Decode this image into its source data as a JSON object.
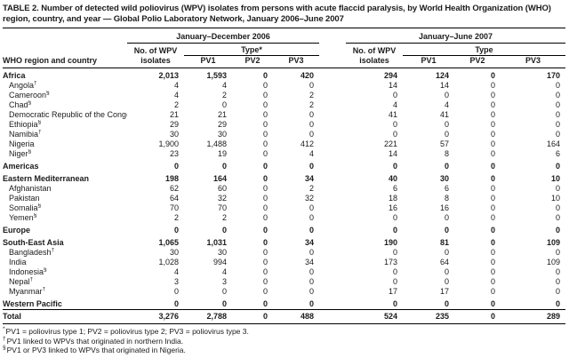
{
  "title": "TABLE 2. Number of detected wild poliovirus (WPV) isolates from persons with acute flaccid paralysis, by World Health Organization (WHO) region, country, and year — Global Polio Laboratory Network, January 2006–June 2007",
  "colors": {
    "background": "#ffffff",
    "text": "#1b1b1b",
    "rule": "#000000"
  },
  "table": {
    "row_header": "WHO region and country",
    "groups": [
      {
        "period": "January–December 2006",
        "isolates_label_line1": "No. of WPV",
        "isolates_label_line2": "isolates",
        "type_label": "Type*",
        "pv": [
          "PV1",
          "PV2",
          "PV3"
        ]
      },
      {
        "period": "January–June 2007",
        "isolates_label_line1": "No. of WPV",
        "isolates_label_line2": "isolates",
        "type_label": "Type",
        "pv": [
          "PV1",
          "PV2",
          "PV3"
        ]
      }
    ],
    "rows": [
      {
        "label": "Africa",
        "marker": "",
        "type": "region",
        "values": [
          "2,013",
          "1,593",
          "0",
          "420",
          "294",
          "124",
          "0",
          "170"
        ]
      },
      {
        "label": "Angola",
        "marker": "†",
        "type": "country",
        "values": [
          "4",
          "4",
          "0",
          "0",
          "14",
          "14",
          "0",
          "0"
        ]
      },
      {
        "label": "Cameroon",
        "marker": "§",
        "type": "country",
        "values": [
          "4",
          "2",
          "0",
          "2",
          "0",
          "0",
          "0",
          "0"
        ]
      },
      {
        "label": "Chad",
        "marker": "§",
        "type": "country",
        "values": [
          "2",
          "0",
          "0",
          "2",
          "4",
          "4",
          "0",
          "0"
        ]
      },
      {
        "label": "Democratic Republic of the Congo",
        "marker": "†",
        "type": "country",
        "values": [
          "21",
          "21",
          "0",
          "0",
          "41",
          "41",
          "0",
          "0"
        ]
      },
      {
        "label": "Ethiopia",
        "marker": "§",
        "type": "country",
        "values": [
          "29",
          "29",
          "0",
          "0",
          "0",
          "0",
          "0",
          "0"
        ]
      },
      {
        "label": "Namibia",
        "marker": "†",
        "type": "country",
        "values": [
          "30",
          "30",
          "0",
          "0",
          "0",
          "0",
          "0",
          "0"
        ]
      },
      {
        "label": "Nigeria",
        "marker": "",
        "type": "country",
        "values": [
          "1,900",
          "1,488",
          "0",
          "412",
          "221",
          "57",
          "0",
          "164"
        ]
      },
      {
        "label": "Niger",
        "marker": "§",
        "type": "country",
        "values": [
          "23",
          "19",
          "0",
          "4",
          "14",
          "8",
          "0",
          "6"
        ]
      },
      {
        "label": "Americas",
        "marker": "",
        "type": "region",
        "values": [
          "0",
          "0",
          "0",
          "0",
          "0",
          "0",
          "0",
          "0"
        ]
      },
      {
        "label": "Eastern Mediterranean",
        "marker": "",
        "type": "region",
        "values": [
          "198",
          "164",
          "0",
          "34",
          "40",
          "30",
          "0",
          "10"
        ]
      },
      {
        "label": "Afghanistan",
        "marker": "",
        "type": "country",
        "values": [
          "62",
          "60",
          "0",
          "2",
          "6",
          "6",
          "0",
          "0"
        ]
      },
      {
        "label": "Pakistan",
        "marker": "",
        "type": "country",
        "values": [
          "64",
          "32",
          "0",
          "32",
          "18",
          "8",
          "0",
          "10"
        ]
      },
      {
        "label": "Somalia",
        "marker": "§",
        "type": "country",
        "values": [
          "70",
          "70",
          "0",
          "0",
          "16",
          "16",
          "0",
          "0"
        ]
      },
      {
        "label": "Yemen",
        "marker": "§",
        "type": "country",
        "values": [
          "2",
          "2",
          "0",
          "0",
          "0",
          "0",
          "0",
          "0"
        ]
      },
      {
        "label": "Europe",
        "marker": "",
        "type": "region",
        "values": [
          "0",
          "0",
          "0",
          "0",
          "0",
          "0",
          "0",
          "0"
        ]
      },
      {
        "label": "South-East Asia",
        "marker": "",
        "type": "region",
        "values": [
          "1,065",
          "1,031",
          "0",
          "34",
          "190",
          "81",
          "0",
          "109"
        ]
      },
      {
        "label": "Bangladesh",
        "marker": "†",
        "type": "country",
        "values": [
          "30",
          "30",
          "0",
          "0",
          "0",
          "0",
          "0",
          "0"
        ]
      },
      {
        "label": "India",
        "marker": "",
        "type": "country",
        "values": [
          "1,028",
          "994",
          "0",
          "34",
          "173",
          "64",
          "0",
          "109"
        ]
      },
      {
        "label": "Indonesia",
        "marker": "§",
        "type": "country",
        "values": [
          "4",
          "4",
          "0",
          "0",
          "0",
          "0",
          "0",
          "0"
        ]
      },
      {
        "label": "Nepal",
        "marker": "†",
        "type": "country",
        "values": [
          "3",
          "3",
          "0",
          "0",
          "0",
          "0",
          "0",
          "0"
        ]
      },
      {
        "label": "Myanmar",
        "marker": "†",
        "type": "country",
        "values": [
          "0",
          "0",
          "0",
          "0",
          "17",
          "17",
          "0",
          "0"
        ]
      },
      {
        "label": "Western Pacific",
        "marker": "",
        "type": "region",
        "values": [
          "0",
          "0",
          "0",
          "0",
          "0",
          "0",
          "0",
          "0"
        ]
      },
      {
        "label": "Total",
        "marker": "",
        "type": "total",
        "values": [
          "3,276",
          "2,788",
          "0",
          "488",
          "524",
          "235",
          "0",
          "289"
        ]
      }
    ],
    "footnotes": [
      {
        "marker": "*",
        "text": "PV1 = poliovirus type 1; PV2 = poliovirus type 2; PV3 = poliovirus type 3."
      },
      {
        "marker": "†",
        "text": "PV1 linked to WPVs that originated in northern India."
      },
      {
        "marker": "§",
        "text": "PV1 or PV3 linked to WPVs that originated in Nigeria."
      }
    ]
  }
}
